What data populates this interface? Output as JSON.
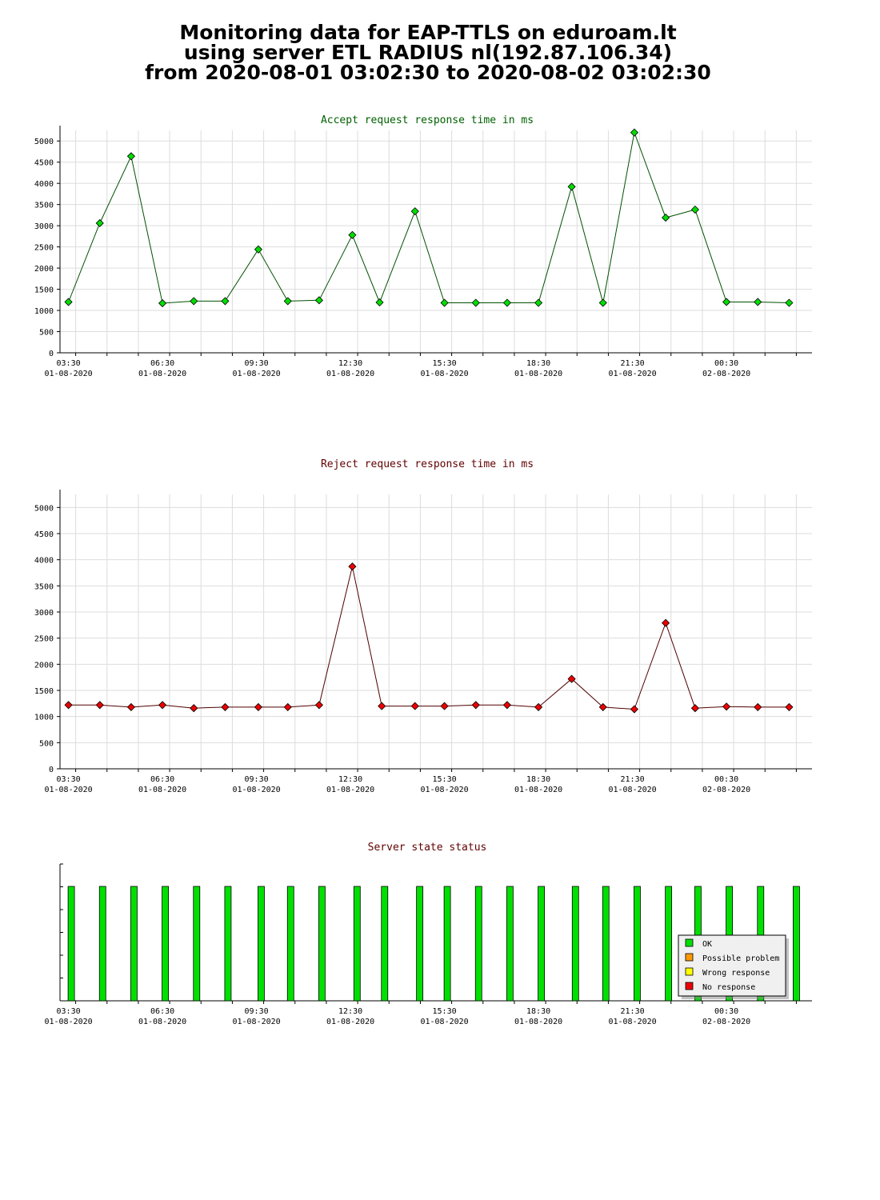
{
  "header": {
    "line1": "Monitoring data for EAP-TTLS on eduroam.lt",
    "line2": "using server ETL RADIUS nl(192.87.106.34)",
    "line3": "from 2020-08-01 03:02:30 to 2020-08-02 03:02:30"
  },
  "colors": {
    "accept_line": "#005000",
    "accept_marker": "#00dd00",
    "reject_line": "#500000",
    "reject_marker": "#ee0000",
    "status_ok": "#00e000",
    "status_possible_problem": "#ff9900",
    "status_wrong_response": "#ffff00",
    "status_no_response": "#ee0000",
    "grid": "#dddddd",
    "accept_title": "#006000",
    "reject_title": "#600000"
  },
  "chart_data": [
    {
      "type": "line",
      "title": "Accept request response time in ms",
      "ylim": [
        0,
        5250
      ],
      "yticks": [
        "0",
        "500",
        "1000",
        "1500",
        "2000",
        "2500",
        "3000",
        "3500",
        "4000",
        "4500",
        "5000"
      ],
      "ytick_values": [
        0,
        500,
        1000,
        1500,
        2000,
        2500,
        3000,
        3500,
        4000,
        4500,
        5000
      ],
      "xlim": [
        3.0,
        27.0
      ],
      "xtick_labels": [
        {
          "time": "03:30",
          "date": "01-08-2020",
          "x": 3.5
        },
        {
          "time": "06:30",
          "date": "01-08-2020",
          "x": 6.5
        },
        {
          "time": "09:30",
          "date": "01-08-2020",
          "x": 9.5
        },
        {
          "time": "12:30",
          "date": "01-08-2020",
          "x": 12.5
        },
        {
          "time": "15:30",
          "date": "01-08-2020",
          "x": 15.5
        },
        {
          "time": "18:30",
          "date": "01-08-2020",
          "x": 18.5
        },
        {
          "time": "21:30",
          "date": "01-08-2020",
          "x": 21.5
        },
        {
          "time": "00:30",
          "date": "02-08-2020",
          "x": 24.5
        }
      ],
      "grid": true,
      "series": [
        {
          "x": [
            3.27,
            4.27,
            5.27,
            6.27,
            7.27,
            8.27,
            9.33,
            10.27,
            11.27,
            12.33,
            13.2,
            14.33,
            15.27,
            16.27,
            17.27,
            18.27,
            19.33,
            20.33,
            21.33,
            22.33,
            23.27,
            24.27,
            25.27,
            26.27
          ],
          "values": [
            1200,
            3060,
            4640,
            1170,
            1220,
            1220,
            2440,
            1220,
            1240,
            2780,
            1190,
            3340,
            1180,
            1180,
            1180,
            1180,
            3920,
            1180,
            5200,
            3190,
            3380,
            1200,
            1200,
            1180
          ]
        }
      ]
    },
    {
      "type": "line",
      "title": "Reject request response time in ms",
      "ylim": [
        0,
        5250
      ],
      "yticks": [
        "0",
        "500",
        "1000",
        "1500",
        "2000",
        "2500",
        "3000",
        "3500",
        "4000",
        "4500",
        "5000"
      ],
      "ytick_values": [
        0,
        500,
        1000,
        1500,
        2000,
        2500,
        3000,
        3500,
        4000,
        4500,
        5000
      ],
      "xlim": [
        3.0,
        27.0
      ],
      "xtick_labels": [
        {
          "time": "03:30",
          "date": "01-08-2020",
          "x": 3.5
        },
        {
          "time": "06:30",
          "date": "01-08-2020",
          "x": 6.5
        },
        {
          "time": "09:30",
          "date": "01-08-2020",
          "x": 9.5
        },
        {
          "time": "12:30",
          "date": "01-08-2020",
          "x": 12.5
        },
        {
          "time": "15:30",
          "date": "01-08-2020",
          "x": 15.5
        },
        {
          "time": "18:30",
          "date": "01-08-2020",
          "x": 18.5
        },
        {
          "time": "21:30",
          "date": "01-08-2020",
          "x": 21.5
        },
        {
          "time": "00:30",
          "date": "02-08-2020",
          "x": 24.5
        }
      ],
      "grid": true,
      "series": [
        {
          "x": [
            3.27,
            4.27,
            5.27,
            6.27,
            7.27,
            8.27,
            9.33,
            10.27,
            11.27,
            12.33,
            13.27,
            14.33,
            15.27,
            16.27,
            17.27,
            18.27,
            19.33,
            20.33,
            21.33,
            22.33,
            23.27,
            24.27,
            25.27,
            26.27
          ],
          "values": [
            1220,
            1220,
            1180,
            1220,
            1160,
            1180,
            1180,
            1180,
            1220,
            3870,
            1200,
            1200,
            1200,
            1220,
            1220,
            1180,
            1720,
            1180,
            1140,
            2790,
            1160,
            1190,
            1180,
            1180
          ]
        }
      ]
    },
    {
      "type": "bar",
      "title": "Server state status",
      "xlim": [
        3.0,
        27.0
      ],
      "xtick_labels": [
        {
          "time": "03:30",
          "date": "01-08-2020",
          "x": 3.5
        },
        {
          "time": "06:30",
          "date": "01-08-2020",
          "x": 6.5
        },
        {
          "time": "09:30",
          "date": "01-08-2020",
          "x": 9.5
        },
        {
          "time": "12:30",
          "date": "01-08-2020",
          "x": 12.5
        },
        {
          "time": "15:30",
          "date": "01-08-2020",
          "x": 15.5
        },
        {
          "time": "18:30",
          "date": "01-08-2020",
          "x": 18.5
        },
        {
          "time": "21:30",
          "date": "01-08-2020",
          "x": 21.5
        },
        {
          "time": "00:30",
          "date": "02-08-2020",
          "x": 24.5
        }
      ],
      "x": [
        3.36,
        4.36,
        5.36,
        6.36,
        7.36,
        8.36,
        9.42,
        10.36,
        11.36,
        12.48,
        13.36,
        14.48,
        15.36,
        16.36,
        17.36,
        18.36,
        19.45,
        20.42,
        21.42,
        22.42,
        23.36,
        24.36,
        25.36,
        26.5
      ],
      "status": [
        "OK",
        "OK",
        "OK",
        "OK",
        "OK",
        "OK",
        "OK",
        "OK",
        "OK",
        "OK",
        "OK",
        "OK",
        "OK",
        "OK",
        "OK",
        "OK",
        "OK",
        "OK",
        "OK",
        "OK",
        "OK",
        "OK",
        "OK",
        "OK"
      ],
      "legend": {
        "placement": "bottom-right",
        "items": [
          {
            "label": "OK",
            "color_key": "status_ok"
          },
          {
            "label": "Possible problem",
            "color_key": "status_possible_problem"
          },
          {
            "label": "Wrong response",
            "color_key": "status_wrong_response"
          },
          {
            "label": "No response",
            "color_key": "status_no_response"
          }
        ]
      }
    }
  ]
}
